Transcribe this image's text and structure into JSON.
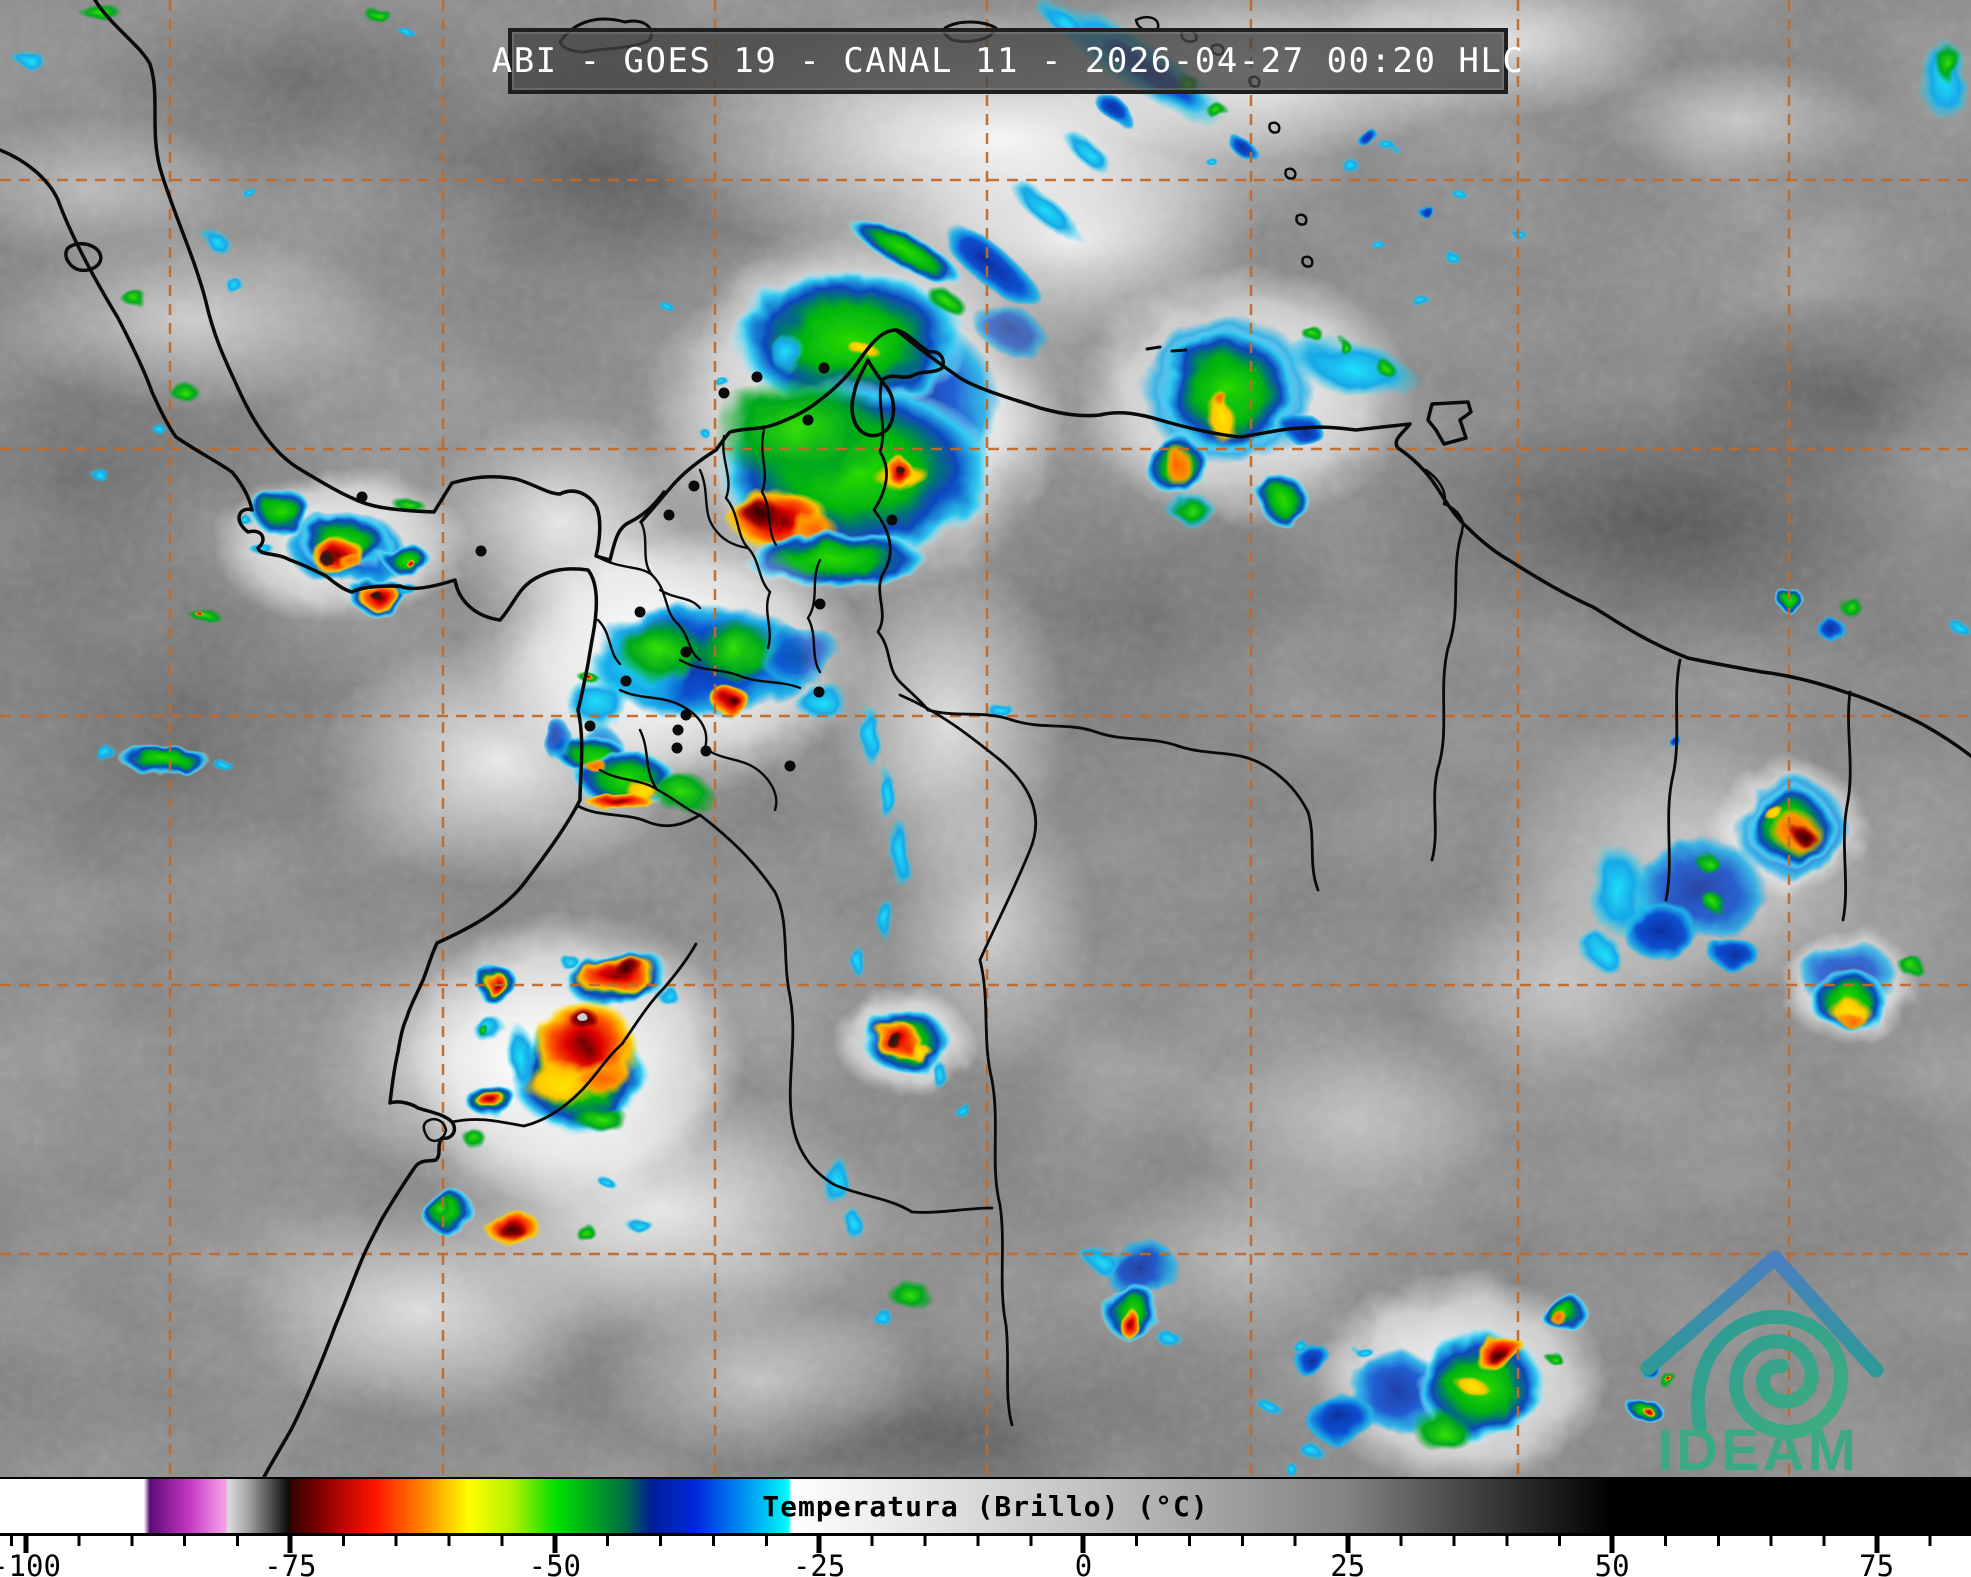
{
  "header": {
    "title": "ABI - GOES 19 - CANAL 11 - 2026-04-27 00:20 HLC"
  },
  "colorbar": {
    "label": "Temperatura (Brillo) (°C)",
    "unit": "°C",
    "range_min": -100,
    "range_max": 75,
    "tick_labels": [
      "-100",
      "-75",
      "-50",
      "-25",
      "0",
      "25",
      "50",
      "75"
    ],
    "tick_positions_pct": [
      1.32,
      14.73,
      28.15,
      41.56,
      54.97,
      68.38,
      81.79,
      95.21
    ],
    "minor_tick_step_c": 5,
    "gradient_stops": [
      [
        "0",
        "#ffffff"
      ],
      [
        "7.3",
        "#ffffff"
      ],
      [
        "7.6",
        "#5e0a78"
      ],
      [
        "9.6",
        "#c437c4"
      ],
      [
        "11.3",
        "#f29ce8"
      ],
      [
        "11.45",
        "#f29ce8"
      ],
      [
        "11.55",
        "#dcdcdc"
      ],
      [
        "12.5",
        "#a9a9a9"
      ],
      [
        "13.6",
        "#5a5a5a"
      ],
      [
        "14.65",
        "#0a0a0a"
      ],
      [
        "14.75",
        "#330000"
      ],
      [
        "16.5",
        "#8f0000"
      ],
      [
        "19",
        "#ff1400"
      ],
      [
        "21.6",
        "#ff8c00"
      ],
      [
        "23.8",
        "#ffff00"
      ],
      [
        "26",
        "#b4f000"
      ],
      [
        "28.2",
        "#00e100"
      ],
      [
        "30",
        "#00a81e"
      ],
      [
        "31.8",
        "#006a4a"
      ],
      [
        "33",
        "#001e96"
      ],
      [
        "35.3",
        "#0028dc"
      ],
      [
        "37.4",
        "#0082f0"
      ],
      [
        "39.6",
        "#00e6f5"
      ],
      [
        "40",
        "#00ffff"
      ],
      [
        "40.15",
        "#ffffff"
      ],
      [
        "55",
        "#c3c3c3"
      ],
      [
        "68.4",
        "#828282"
      ],
      [
        "75",
        "#3f3f3f"
      ],
      [
        "81.8",
        "#000000"
      ],
      [
        "100",
        "#000000"
      ]
    ]
  },
  "logo": {
    "text": "IDEAM",
    "roof_top_color": "#4a7fc1",
    "roof_bottom_color": "#2d9a96",
    "spiral_start_color": "#2d9a96",
    "spiral_end_color": "#3fae7e",
    "wordmark_color": "#3baa84"
  },
  "map": {
    "graticule_color": "#c06a2a",
    "border_color": "#0a0a0a",
    "satellite": "GOES 19",
    "instrument": "ABI",
    "channel": "CANAL 11",
    "datetime_label": "2026-04-27 00:20 HLC"
  }
}
